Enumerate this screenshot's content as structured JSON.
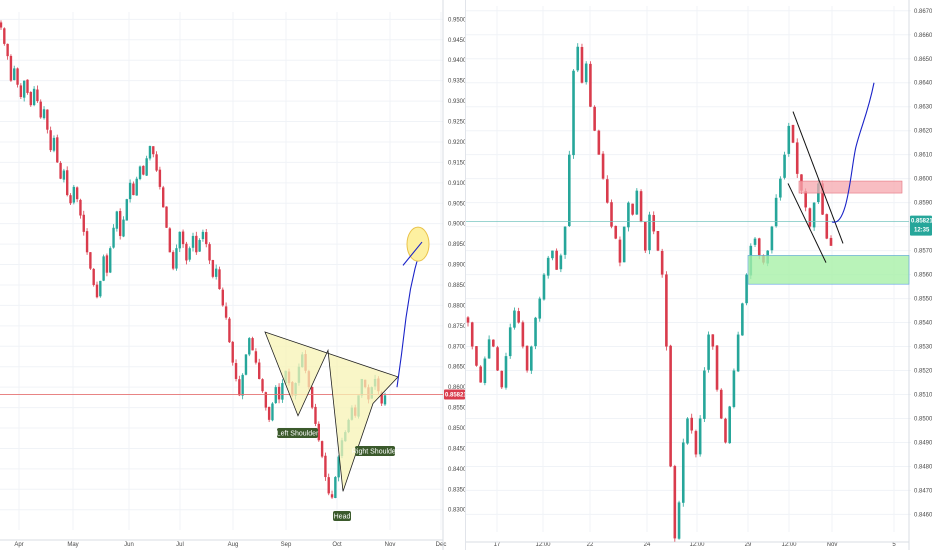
{
  "colors": {
    "up": "#26a69a",
    "down": "#d93b4c",
    "projection": "#1a23c8",
    "triangle_fill": "#f7f3b4",
    "triangle_stroke": "#222222",
    "price_line_left": "#e57373",
    "price_line_right": "#79c6c0",
    "supply_fill": "#f5a7ad",
    "demand_fill": "#a8f0a8",
    "label_bg": "#3b5a2c",
    "target_fill": "#fdf0a0",
    "target_stroke": "#e9c24a"
  },
  "chart_data": [
    {
      "type": "candlestick",
      "title": "",
      "xlabel": "",
      "ylabel": "",
      "x_tick_labels": [
        "Apr",
        "May",
        "Jun",
        "Jul",
        "Aug",
        "Sep",
        "Oct",
        "Nov",
        "Dec"
      ],
      "y_tick_labels": [
        "0.95000",
        "0.94500",
        "0.94000",
        "0.93500",
        "0.93000",
        "0.92500",
        "0.92000",
        "0.91500",
        "0.91000",
        "0.90500",
        "0.90000",
        "0.89500",
        "0.89000",
        "0.88500",
        "0.88000",
        "0.87500",
        "0.87000",
        "0.86500",
        "0.86000",
        "0.85500",
        "0.85000",
        "0.84500",
        "0.84000",
        "0.83500",
        "0.83000"
      ],
      "ylim": [
        0.827,
        0.9518
      ],
      "grid": true,
      "current_price": "0.85821",
      "close_series": [
        0.948,
        0.944,
        0.941,
        0.935,
        0.938,
        0.934,
        0.931,
        0.935,
        0.932,
        0.929,
        0.933,
        0.93,
        0.926,
        0.928,
        0.923,
        0.918,
        0.921,
        0.915,
        0.911,
        0.913,
        0.907,
        0.905,
        0.909,
        0.906,
        0.902,
        0.898,
        0.893,
        0.889,
        0.885,
        0.882,
        0.886,
        0.892,
        0.888,
        0.894,
        0.899,
        0.903,
        0.897,
        0.901,
        0.906,
        0.91,
        0.907,
        0.911,
        0.914,
        0.912,
        0.916,
        0.919,
        0.917,
        0.913,
        0.909,
        0.904,
        0.899,
        0.893,
        0.889,
        0.894,
        0.898,
        0.895,
        0.891,
        0.894,
        0.897,
        0.893,
        0.896,
        0.898,
        0.895,
        0.891,
        0.887,
        0.889,
        0.884,
        0.88,
        0.877,
        0.871,
        0.866,
        0.862,
        0.858,
        0.863,
        0.868,
        0.872,
        0.869,
        0.866,
        0.862,
        0.859,
        0.855,
        0.852,
        0.856,
        0.86,
        0.857,
        0.861,
        0.864,
        0.861,
        0.858,
        0.861,
        0.865,
        0.868,
        0.864,
        0.86,
        0.855,
        0.851,
        0.847,
        0.843,
        0.838,
        0.834,
        0.833,
        0.838,
        0.843,
        0.847,
        0.849,
        0.852,
        0.855,
        0.853,
        0.858,
        0.862,
        0.86,
        0.857,
        0.86,
        0.862,
        0.859,
        0.856,
        0.858
      ],
      "projection": [
        0.86,
        0.868,
        0.877,
        0.884,
        0.889,
        0.893,
        0.895
      ],
      "annotations": {
        "left_shoulder": "Left Shoulder",
        "head": "Head",
        "right_shoulder": "Right Shoulder"
      },
      "target_zone_center": 0.895,
      "pattern": "inverse-head-and-shoulders",
      "triangle_points": [
        [
          0.873,
          0.8735
        ],
        [
          0.853,
          0.853
        ],
        [
          0.8625,
          0.869
        ],
        [
          0.8345,
          0.8345
        ],
        [
          0.856,
          0.856
        ],
        [
          0.8625,
          0.8625
        ]
      ]
    },
    {
      "type": "candlestick",
      "title": "",
      "xlabel": "",
      "ylabel": "",
      "x_tick_labels": [
        "17",
        "12:00",
        "22",
        "24",
        "12:00",
        "29",
        "12:00",
        "Nov",
        "5"
      ],
      "y_tick_labels": [
        "0.86700",
        "0.86600",
        "0.86500",
        "0.86400",
        "0.86300",
        "0.86200",
        "0.86100",
        "0.86000",
        "0.85900",
        "0.85800",
        "0.85700",
        "0.85600",
        "0.85500",
        "0.85400",
        "0.85300",
        "0.85200",
        "0.85100",
        "0.85000",
        "0.84900",
        "0.84800",
        "0.84700",
        "0.84600"
      ],
      "ylim": [
        0.8456,
        0.8672
      ],
      "grid": true,
      "current_price": "0.85821",
      "countdown": "12:35",
      "close_series": [
        0.854,
        0.853,
        0.8522,
        0.8515,
        0.8525,
        0.8533,
        0.853,
        0.852,
        0.8513,
        0.8526,
        0.8538,
        0.8545,
        0.854,
        0.853,
        0.852,
        0.853,
        0.8542,
        0.855,
        0.856,
        0.8567,
        0.857,
        0.8562,
        0.8568,
        0.858,
        0.861,
        0.8645,
        0.8655,
        0.864,
        0.8648,
        0.863,
        0.862,
        0.861,
        0.86,
        0.859,
        0.858,
        0.8575,
        0.8565,
        0.858,
        0.859,
        0.8585,
        0.8595,
        0.8582,
        0.857,
        0.8585,
        0.8578,
        0.857,
        0.856,
        0.853,
        0.848,
        0.845,
        0.8465,
        0.849,
        0.85,
        0.8495,
        0.8485,
        0.85,
        0.852,
        0.8535,
        0.853,
        0.8512,
        0.85,
        0.849,
        0.8505,
        0.852,
        0.8535,
        0.8548,
        0.856,
        0.8572,
        0.8575,
        0.8568,
        0.8565,
        0.857,
        0.858,
        0.8592,
        0.86,
        0.861,
        0.8622,
        0.8615,
        0.8602,
        0.8595,
        0.8588,
        0.858,
        0.859,
        0.8598,
        0.8585,
        0.8575,
        0.8572
      ],
      "projection": [
        0.8582,
        0.859,
        0.8605,
        0.8622,
        0.864
      ],
      "supply_zone": [
        0.8594,
        0.8599
      ],
      "demand_zone": [
        0.8556,
        0.8568
      ],
      "channel_upper": [
        [
          0.8628,
          0.8573
        ]
      ],
      "channel_lower": [
        [
          0.8598,
          0.8565
        ]
      ]
    }
  ]
}
